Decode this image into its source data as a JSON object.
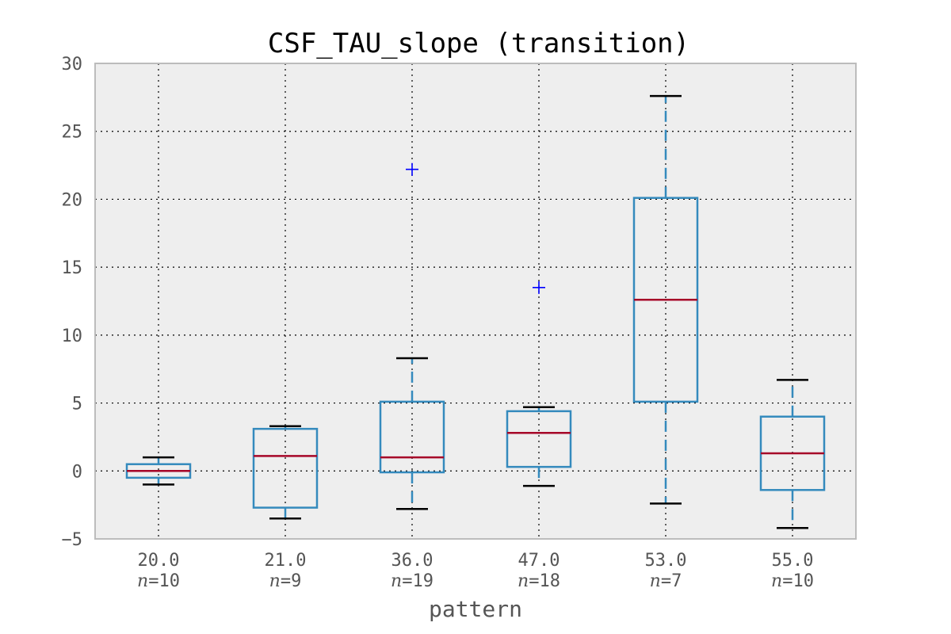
{
  "chart_data": {
    "type": "box",
    "title": "CSF_TAU_slope (transition)",
    "xlabel": "pattern",
    "ylabel": "",
    "ylim": [
      -5,
      30
    ],
    "yticks": [
      -5,
      0,
      5,
      10,
      15,
      20,
      25,
      30
    ],
    "grid": true,
    "categories": [
      {
        "label": "20.0",
        "n_label": "n=10",
        "whisker_low": -1.0,
        "q1": -0.5,
        "median": 0.0,
        "q3": 0.5,
        "whisker_high": 1.0,
        "outliers": []
      },
      {
        "label": "21.0",
        "n_label": "n=9",
        "whisker_low": -3.5,
        "q1": -2.7,
        "median": 1.1,
        "q3": 3.1,
        "whisker_high": 3.3,
        "outliers": []
      },
      {
        "label": "36.0",
        "n_label": "n=19",
        "whisker_low": -2.8,
        "q1": -0.1,
        "median": 1.0,
        "q3": 5.1,
        "whisker_high": 8.3,
        "outliers": [
          22.2
        ]
      },
      {
        "label": "47.0",
        "n_label": "n=18",
        "whisker_low": -1.1,
        "q1": 0.3,
        "median": 2.8,
        "q3": 4.4,
        "whisker_high": 4.7,
        "outliers": [
          13.5
        ]
      },
      {
        "label": "53.0",
        "n_label": "n=7",
        "whisker_low": -2.4,
        "q1": 5.1,
        "median": 12.6,
        "q3": 20.1,
        "whisker_high": 27.6,
        "outliers": []
      },
      {
        "label": "55.0",
        "n_label": "n=10",
        "whisker_low": -4.2,
        "q1": -1.4,
        "median": 1.3,
        "q3": 4.0,
        "whisker_high": 6.7,
        "outliers": []
      }
    ],
    "colors": {
      "box": "#348abd",
      "median": "#a60628",
      "whisker_cap": "#000000",
      "outlier": "#0000ff",
      "plot_bg": "#eeeeee",
      "axes_edge": "#bcbcbc",
      "grid": "#000000",
      "text": "#555555",
      "title": "#000000"
    }
  }
}
